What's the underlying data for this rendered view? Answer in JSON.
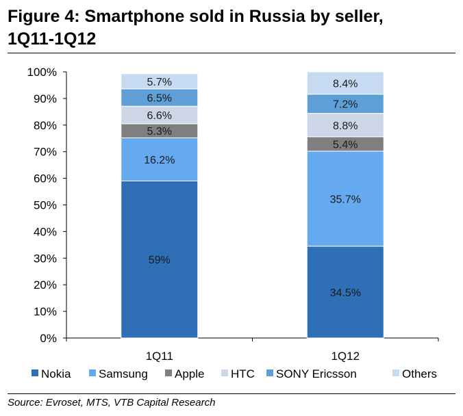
{
  "title_line1": "Figure 4: Smartphone sold in Russia by seller,",
  "title_line2": "1Q11-1Q12",
  "source": "Source: Evroset, MTS, VTB Capital Research",
  "chart_data": {
    "type": "bar",
    "stacked": true,
    "categories": [
      "1Q11",
      "1Q12"
    ],
    "series": [
      {
        "name": "Nokia",
        "values": [
          59,
          34.5
        ],
        "labels": [
          "59%",
          "34.5%"
        ],
        "color": "#2e6fb6"
      },
      {
        "name": "Samsung",
        "values": [
          16.2,
          35.7
        ],
        "labels": [
          "16.2%",
          "35.7%"
        ],
        "color": "#65a9f1"
      },
      {
        "name": "Apple",
        "values": [
          5.3,
          5.4
        ],
        "labels": [
          "5.3%",
          "5.4%"
        ],
        "color": "#7f7f7f"
      },
      {
        "name": "HTC",
        "values": [
          6.6,
          8.8
        ],
        "labels": [
          "6.6%",
          "8.8%"
        ],
        "color": "#ccd6e6"
      },
      {
        "name": "SONY Ericsson",
        "values": [
          6.5,
          7.2
        ],
        "labels": [
          "6.5%",
          "7.2%"
        ],
        "color": "#5f9fd8"
      },
      {
        "name": "Others",
        "values": [
          5.7,
          8.4
        ],
        "labels": [
          "5.7%",
          "8.4%"
        ],
        "color": "#c6dbf1"
      }
    ],
    "ylim": [
      0,
      100
    ],
    "yticks": [
      "0%",
      "10%",
      "20%",
      "30%",
      "40%",
      "50%",
      "60%",
      "70%",
      "80%",
      "90%",
      "100%"
    ],
    "legend_position": "bottom",
    "grid": false
  }
}
